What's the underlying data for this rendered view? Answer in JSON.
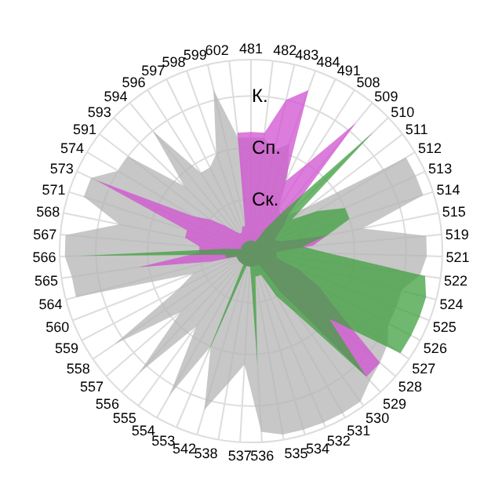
{
  "chart_data": {
    "type": "radar",
    "categories": [
      "481",
      "482",
      "483",
      "484",
      "491",
      "508",
      "509",
      "510",
      "511",
      "512",
      "513",
      "514",
      "515",
      "519",
      "521",
      "522",
      "524",
      "525",
      "526",
      "527",
      "528",
      "529",
      "530",
      "531",
      "532",
      "534",
      "535",
      "536",
      "537",
      "538",
      "542",
      "553",
      "554",
      "555",
      "556",
      "557",
      "558",
      "559",
      "560",
      "564",
      "565",
      "566",
      "567",
      "568",
      "571",
      "573",
      "574",
      "591",
      "593",
      "594",
      "596",
      "597",
      "598",
      "599",
      "602"
    ],
    "ylim": [
      0,
      3.7
    ],
    "yticks": [
      {
        "value": 1,
        "label": "Ск."
      },
      {
        "value": 2,
        "label": "Сп."
      },
      {
        "value": 3,
        "label": "К."
      }
    ],
    "grid": true,
    "series": [
      {
        "color": "#b4b4b4",
        "values": [
          2.2,
          2.2,
          2.0,
          2.2,
          1.6,
          1.0,
          0.9,
          1.0,
          1.4,
          3.5,
          3.5,
          3.5,
          2.2,
          3.4,
          3.4,
          3.3,
          3.0,
          3.0,
          3.0,
          3.2,
          3.3,
          3.4,
          3.6,
          3.6,
          3.6,
          3.6,
          3.6,
          3.5,
          2.2,
          2.6,
          3.2,
          2.0,
          3.2,
          1.8,
          3.2,
          1.8,
          3.2,
          1.6,
          1.2,
          3.5,
          3.5,
          3.6,
          3.6,
          2.6,
          3.4,
          3.4,
          3.0,
          3.0,
          1.8,
          3.0,
          1.8,
          1.8,
          2.0,
          3.2,
          2.2
        ]
      },
      {
        "color": "#d050d0",
        "values": [
          2.3,
          2.3,
          3.0,
          3.3,
          1.5,
          2.0,
          3.2,
          1.0,
          0.8,
          0.6,
          0.5,
          0.6,
          1.5,
          1.2,
          0.5,
          0.5,
          0.5,
          1.0,
          1.5,
          2.0,
          3.3,
          3.3,
          1.0,
          0.3,
          0.3,
          0.3,
          0.3,
          0.3,
          0.3,
          0.3,
          0.3,
          0.3,
          0.3,
          0.3,
          0.3,
          0.3,
          0.3,
          0.3,
          0.3,
          0.8,
          2.2,
          1.0,
          1.0,
          1.3,
          1.3,
          3.3,
          1.3,
          1.0,
          0.7,
          0.5,
          0.4,
          0.4,
          0.5,
          0.5,
          2.3
        ]
      },
      {
        "color": "#40a040",
        "values": [
          0.2,
          0.2,
          0.2,
          0.2,
          0.2,
          0.5,
          1.0,
          3.3,
          1.0,
          1.5,
          2.0,
          2.0,
          1.5,
          1.0,
          1.5,
          3.4,
          3.5,
          3.5,
          3.5,
          3.5,
          2.0,
          3.3,
          1.5,
          1.0,
          0.5,
          0.5,
          0.5,
          2.2,
          0.3,
          0.3,
          0.3,
          2.2,
          0.3,
          0.3,
          0.3,
          0.3,
          0.3,
          0.3,
          0.3,
          0.5,
          0.5,
          3.3,
          0.5,
          0.2,
          0.2,
          0.2,
          0.2,
          0.2,
          0.2,
          0.2,
          0.2,
          0.2,
          0.2,
          0.2,
          0.2
        ]
      }
    ]
  }
}
